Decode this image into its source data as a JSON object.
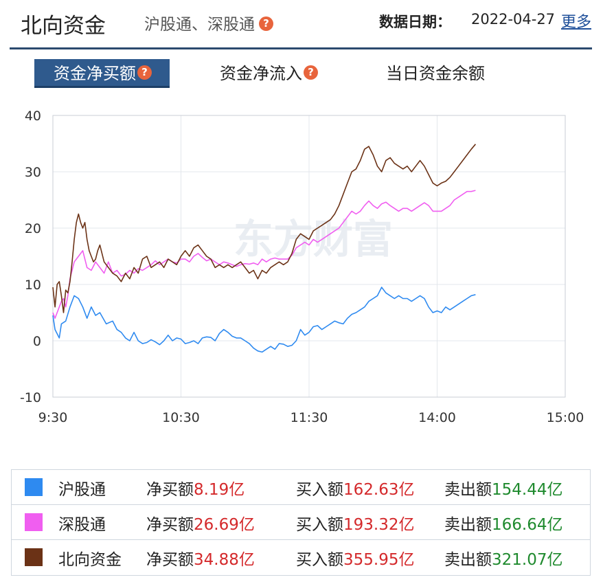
{
  "header": {
    "title": "北向资金",
    "subtitle": "沪股通、深股通",
    "date_label": "数据日期：",
    "date_value": "2022-04-27",
    "more_label": "更多",
    "help_glyph": "?"
  },
  "tabs": [
    {
      "label": "资金净买额",
      "active": true,
      "has_help": true
    },
    {
      "label": "资金净流入",
      "active": false,
      "has_help": true
    },
    {
      "label": "当日资金余额",
      "active": false,
      "has_help": false
    }
  ],
  "colors": {
    "accent": "#2f5a8d",
    "sh_connect": "#2e8af0",
    "sz_connect": "#f05ef0",
    "northbound": "#6b3216",
    "up": "#d4292b",
    "down": "#1f8a2e"
  },
  "chart_data": {
    "type": "line",
    "watermark": "东方财富",
    "x_ticks": [
      "9:30",
      "10:30",
      "11:30",
      "14:00",
      "15:00"
    ],
    "y_ticks": [
      "40",
      "30",
      "20",
      "10",
      "0",
      "-10"
    ],
    "ylim": [
      -10,
      40
    ],
    "x_unit": "minutes since open, 9:30-11:30 then 13:00-15:00",
    "x_range": [
      0,
      240
    ],
    "grid": true,
    "series": [
      {
        "name": "沪股通",
        "color": "#2e8af0",
        "points": [
          [
            0,
            4.5
          ],
          [
            1,
            2
          ],
          [
            3,
            0.5
          ],
          [
            4,
            3
          ],
          [
            6,
            3.5
          ],
          [
            8,
            6
          ],
          [
            10,
            8
          ],
          [
            12,
            7.5
          ],
          [
            14,
            6
          ],
          [
            16,
            4
          ],
          [
            18,
            6
          ],
          [
            20,
            4.5
          ],
          [
            22,
            5
          ],
          [
            25,
            3
          ],
          [
            28,
            3.5
          ],
          [
            30,
            2
          ],
          [
            32,
            1.5
          ],
          [
            34,
            0.5
          ],
          [
            36,
            0
          ],
          [
            38,
            1.5
          ],
          [
            40,
            0
          ],
          [
            42,
            -0.5
          ],
          [
            44,
            -0.3
          ],
          [
            46,
            0.2
          ],
          [
            48,
            -0.2
          ],
          [
            50,
            -0.7
          ],
          [
            52,
            0
          ],
          [
            54,
            1
          ],
          [
            56,
            0
          ],
          [
            58,
            0.5
          ],
          [
            60,
            0.3
          ],
          [
            62,
            -0.5
          ],
          [
            64,
            -0.3
          ],
          [
            66,
            0
          ],
          [
            68,
            -0.5
          ],
          [
            70,
            0.5
          ],
          [
            72,
            0.7
          ],
          [
            74,
            0.6
          ],
          [
            76,
            0
          ],
          [
            78,
            1.3
          ],
          [
            80,
            2
          ],
          [
            82,
            1.5
          ],
          [
            84,
            0.8
          ],
          [
            86,
            0.5
          ],
          [
            88,
            0.5
          ],
          [
            90,
            0
          ],
          [
            92,
            -0.5
          ],
          [
            94,
            -1.3
          ],
          [
            96,
            -1.8
          ],
          [
            98,
            -2
          ],
          [
            100,
            -1.5
          ],
          [
            102,
            -1
          ],
          [
            104,
            -1.5
          ],
          [
            106,
            -0.5
          ],
          [
            108,
            -0.6
          ],
          [
            110,
            -1
          ],
          [
            112,
            -0.8
          ],
          [
            114,
            0
          ],
          [
            116,
            2
          ],
          [
            118,
            1
          ],
          [
            120,
            1.5
          ],
          [
            122,
            2.5
          ],
          [
            124,
            2.7
          ],
          [
            126,
            2
          ],
          [
            128,
            2.5
          ],
          [
            130,
            3
          ],
          [
            132,
            3.5
          ],
          [
            134,
            3.2
          ],
          [
            136,
            3
          ],
          [
            138,
            4
          ],
          [
            140,
            4.7
          ],
          [
            142,
            5
          ],
          [
            144,
            5.5
          ],
          [
            146,
            6
          ],
          [
            148,
            7
          ],
          [
            150,
            7.5
          ],
          [
            152,
            8
          ],
          [
            154,
            9.5
          ],
          [
            156,
            8.5
          ],
          [
            158,
            8
          ],
          [
            160,
            7.5
          ],
          [
            162,
            8
          ],
          [
            164,
            7.5
          ],
          [
            166,
            7.5
          ],
          [
            168,
            7
          ],
          [
            170,
            7.5
          ],
          [
            172,
            8
          ],
          [
            174,
            7.5
          ],
          [
            176,
            6
          ],
          [
            178,
            5
          ],
          [
            180,
            5.3
          ],
          [
            182,
            5
          ],
          [
            184,
            6
          ],
          [
            186,
            5.5
          ],
          [
            188,
            6
          ],
          [
            190,
            6.5
          ],
          [
            192,
            7
          ],
          [
            194,
            7.5
          ],
          [
            196,
            8
          ],
          [
            198,
            8.2
          ]
        ]
      },
      {
        "name": "深股通",
        "color": "#f05ef0",
        "points": [
          [
            0,
            5
          ],
          [
            1,
            4
          ],
          [
            3,
            6
          ],
          [
            4,
            7
          ],
          [
            5,
            7.5
          ],
          [
            6,
            6
          ],
          [
            7,
            8
          ],
          [
            8,
            11
          ],
          [
            10,
            14
          ],
          [
            12,
            15
          ],
          [
            14,
            16
          ],
          [
            16,
            13
          ],
          [
            18,
            12.5
          ],
          [
            20,
            14
          ],
          [
            22,
            13
          ],
          [
            24,
            12
          ],
          [
            26,
            14
          ],
          [
            28,
            12
          ],
          [
            30,
            12.5
          ],
          [
            32,
            11.5
          ],
          [
            34,
            11.8
          ],
          [
            36,
            12.5
          ],
          [
            38,
            12
          ],
          [
            40,
            12.8
          ],
          [
            42,
            12.5
          ],
          [
            44,
            13
          ],
          [
            46,
            13.5
          ],
          [
            48,
            14.2
          ],
          [
            50,
            13.5
          ],
          [
            52,
            14
          ],
          [
            54,
            14.5
          ],
          [
            56,
            14
          ],
          [
            58,
            13.8
          ],
          [
            60,
            14.5
          ],
          [
            62,
            14.5
          ],
          [
            64,
            14
          ],
          [
            66,
            15
          ],
          [
            68,
            15.5
          ],
          [
            70,
            14.8
          ],
          [
            72,
            14.2
          ],
          [
            74,
            14.5
          ],
          [
            76,
            14
          ],
          [
            78,
            13.5
          ],
          [
            80,
            14
          ],
          [
            82,
            13.8
          ],
          [
            84,
            13.5
          ],
          [
            86,
            13.2
          ],
          [
            88,
            13.5
          ],
          [
            90,
            13.7
          ],
          [
            92,
            13.6
          ],
          [
            94,
            13.8
          ],
          [
            96,
            13.5
          ],
          [
            98,
            14.5
          ],
          [
            100,
            14
          ],
          [
            102,
            14.5
          ],
          [
            104,
            14.7
          ],
          [
            106,
            14.5
          ],
          [
            108,
            14.5
          ],
          [
            110,
            14.5
          ],
          [
            112,
            15.2
          ],
          [
            114,
            16.5
          ],
          [
            116,
            17
          ],
          [
            118,
            17.5
          ],
          [
            120,
            17
          ],
          [
            122,
            18
          ],
          [
            124,
            17.5
          ],
          [
            126,
            18
          ],
          [
            128,
            18.5
          ],
          [
            130,
            19
          ],
          [
            132,
            19.5
          ],
          [
            134,
            20
          ],
          [
            136,
            21
          ],
          [
            138,
            22
          ],
          [
            140,
            23
          ],
          [
            142,
            22.5
          ],
          [
            144,
            23
          ],
          [
            146,
            24
          ],
          [
            148,
            24.8
          ],
          [
            150,
            24
          ],
          [
            152,
            23.5
          ],
          [
            154,
            24.3
          ],
          [
            156,
            24.6
          ],
          [
            158,
            24
          ],
          [
            160,
            23.5
          ],
          [
            162,
            23
          ],
          [
            164,
            23.5
          ],
          [
            166,
            23.5
          ],
          [
            168,
            23
          ],
          [
            170,
            23.5
          ],
          [
            172,
            24
          ],
          [
            174,
            24.5
          ],
          [
            176,
            24
          ],
          [
            178,
            23
          ],
          [
            180,
            23
          ],
          [
            182,
            23
          ],
          [
            184,
            23.5
          ],
          [
            186,
            24
          ],
          [
            188,
            25
          ],
          [
            190,
            25.5
          ],
          [
            192,
            26
          ],
          [
            194,
            26.5
          ],
          [
            196,
            26.5
          ],
          [
            198,
            26.7
          ]
        ]
      },
      {
        "name": "北向资金",
        "color": "#6b3216",
        "points": [
          [
            0,
            9.5
          ],
          [
            1,
            6
          ],
          [
            2,
            10
          ],
          [
            3,
            10.5
          ],
          [
            4,
            8
          ],
          [
            5,
            5
          ],
          [
            6,
            9
          ],
          [
            7,
            8.5
          ],
          [
            8,
            10.5
          ],
          [
            9,
            14
          ],
          [
            10,
            18
          ],
          [
            11,
            21
          ],
          [
            12,
            22.5
          ],
          [
            13,
            21
          ],
          [
            14,
            20
          ],
          [
            15,
            21
          ],
          [
            16,
            18
          ],
          [
            17,
            16
          ],
          [
            18,
            15
          ],
          [
            19,
            14
          ],
          [
            20,
            14.5
          ],
          [
            21,
            16
          ],
          [
            22,
            17
          ],
          [
            24,
            14
          ],
          [
            26,
            13
          ],
          [
            28,
            12
          ],
          [
            30,
            11.5
          ],
          [
            32,
            10.5
          ],
          [
            34,
            12
          ],
          [
            36,
            11
          ],
          [
            38,
            13
          ],
          [
            40,
            12
          ],
          [
            42,
            14.5
          ],
          [
            44,
            15
          ],
          [
            46,
            13
          ],
          [
            48,
            13.5
          ],
          [
            50,
            14
          ],
          [
            52,
            13
          ],
          [
            54,
            14.5
          ],
          [
            56,
            14
          ],
          [
            58,
            13.5
          ],
          [
            60,
            15
          ],
          [
            62,
            16
          ],
          [
            64,
            15
          ],
          [
            66,
            16.5
          ],
          [
            68,
            17
          ],
          [
            70,
            16
          ],
          [
            72,
            15
          ],
          [
            74,
            14.5
          ],
          [
            76,
            13
          ],
          [
            78,
            13.5
          ],
          [
            80,
            13
          ],
          [
            82,
            13.5
          ],
          [
            84,
            13
          ],
          [
            86,
            13.5
          ],
          [
            88,
            14
          ],
          [
            90,
            13
          ],
          [
            92,
            12
          ],
          [
            94,
            12.5
          ],
          [
            96,
            11
          ],
          [
            98,
            12.5
          ],
          [
            100,
            12
          ],
          [
            102,
            13
          ],
          [
            104,
            13.5
          ],
          [
            106,
            14
          ],
          [
            108,
            13.5
          ],
          [
            110,
            14
          ],
          [
            112,
            15.5
          ],
          [
            114,
            18
          ],
          [
            116,
            19
          ],
          [
            118,
            18.5
          ],
          [
            120,
            18
          ],
          [
            122,
            19.5
          ],
          [
            124,
            20
          ],
          [
            126,
            20.5
          ],
          [
            128,
            21
          ],
          [
            130,
            21.5
          ],
          [
            132,
            22.5
          ],
          [
            134,
            24
          ],
          [
            136,
            26
          ],
          [
            138,
            28
          ],
          [
            140,
            30
          ],
          [
            142,
            30.5
          ],
          [
            144,
            32
          ],
          [
            146,
            34
          ],
          [
            148,
            34.5
          ],
          [
            150,
            33
          ],
          [
            152,
            31
          ],
          [
            154,
            30
          ],
          [
            156,
            32
          ],
          [
            158,
            32.5
          ],
          [
            160,
            31.5
          ],
          [
            162,
            31
          ],
          [
            164,
            30.5
          ],
          [
            166,
            31
          ],
          [
            168,
            30
          ],
          [
            170,
            31
          ],
          [
            172,
            32
          ],
          [
            174,
            31
          ],
          [
            176,
            29.5
          ],
          [
            178,
            28
          ],
          [
            180,
            27.5
          ],
          [
            182,
            28
          ],
          [
            184,
            28.3
          ],
          [
            186,
            29
          ],
          [
            188,
            30
          ],
          [
            190,
            31
          ],
          [
            192,
            32
          ],
          [
            194,
            33
          ],
          [
            196,
            34
          ],
          [
            198,
            34.9
          ]
        ]
      }
    ]
  },
  "legend": [
    {
      "name": "沪股通",
      "color": "#2e8af0",
      "net_label": "净买额",
      "net_value": "8.19亿",
      "buy_label": "买入额",
      "buy_value": "162.63亿",
      "sell_label": "卖出额",
      "sell_value": "154.44亿"
    },
    {
      "name": "深股通",
      "color": "#f05ef0",
      "net_label": "净买额",
      "net_value": "26.69亿",
      "buy_label": "买入额",
      "buy_value": "193.32亿",
      "sell_label": "卖出额",
      "sell_value": "166.64亿"
    },
    {
      "name": "北向资金",
      "color": "#6b3216",
      "net_label": "净买额",
      "net_value": "34.88亿",
      "buy_label": "买入额",
      "buy_value": "355.95亿",
      "sell_label": "卖出额",
      "sell_value": "321.07亿"
    }
  ]
}
